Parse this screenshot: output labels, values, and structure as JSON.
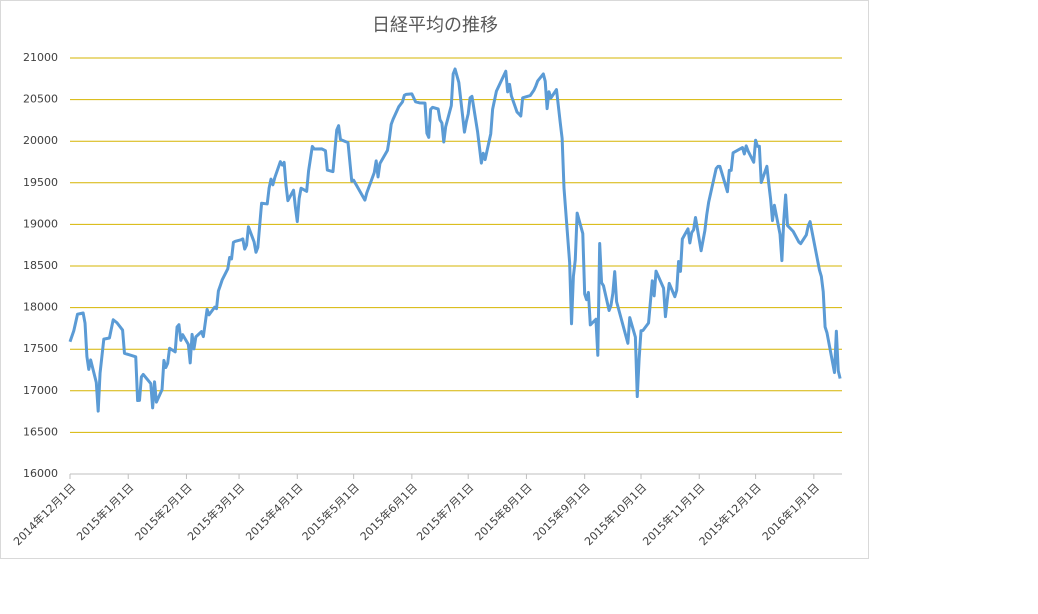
{
  "chart_data": {
    "type": "line",
    "title": "日経平均の推移",
    "x": [
      "2014-12-01",
      "2014-12-03",
      "2014-12-05",
      "2014-12-08",
      "2014-12-09",
      "2014-12-10",
      "2014-12-11",
      "2014-12-12",
      "2014-12-15",
      "2014-12-16",
      "2014-12-17",
      "2014-12-19",
      "2014-12-22",
      "2014-12-24",
      "2014-12-26",
      "2014-12-29",
      "2014-12-30",
      "2015-01-05",
      "2015-01-06",
      "2015-01-07",
      "2015-01-08",
      "2015-01-09",
      "2015-01-13",
      "2015-01-14",
      "2015-01-15",
      "2015-01-16",
      "2015-01-19",
      "2015-01-20",
      "2015-01-21",
      "2015-01-22",
      "2015-01-23",
      "2015-01-26",
      "2015-01-27",
      "2015-01-28",
      "2015-01-29",
      "2015-01-30",
      "2015-02-02",
      "2015-02-03",
      "2015-02-04",
      "2015-02-05",
      "2015-02-06",
      "2015-02-09",
      "2015-02-10",
      "2015-02-12",
      "2015-02-13",
      "2015-02-16",
      "2015-02-17",
      "2015-02-18",
      "2015-02-19",
      "2015-02-20",
      "2015-02-23",
      "2015-02-24",
      "2015-02-25",
      "2015-02-26",
      "2015-02-27",
      "2015-03-02",
      "2015-03-03",
      "2015-03-04",
      "2015-03-05",
      "2015-03-06",
      "2015-03-09",
      "2015-03-10",
      "2015-03-11",
      "2015-03-12",
      "2015-03-13",
      "2015-03-16",
      "2015-03-17",
      "2015-03-18",
      "2015-03-19",
      "2015-03-20",
      "2015-03-23",
      "2015-03-24",
      "2015-03-25",
      "2015-03-26",
      "2015-03-27",
      "2015-03-30",
      "2015-03-31",
      "2015-04-01",
      "2015-04-02",
      "2015-04-03",
      "2015-04-06",
      "2015-04-07",
      "2015-04-08",
      "2015-04-09",
      "2015-04-10",
      "2015-04-14",
      "2015-04-16",
      "2015-04-17",
      "2015-04-20",
      "2015-04-22",
      "2015-04-23",
      "2015-04-24",
      "2015-04-28",
      "2015-04-30",
      "2015-05-01",
      "2015-05-07",
      "2015-05-08",
      "2015-05-12",
      "2015-05-13",
      "2015-05-14",
      "2015-05-15",
      "2015-05-19",
      "2015-05-20",
      "2015-05-21",
      "2015-05-22",
      "2015-05-25",
      "2015-05-27",
      "2015-05-28",
      "2015-05-29",
      "2015-06-01",
      "2015-06-03",
      "2015-06-05",
      "2015-06-08",
      "2015-06-09",
      "2015-06-10",
      "2015-06-11",
      "2015-06-12",
      "2015-06-15",
      "2015-06-16",
      "2015-06-17",
      "2015-06-18",
      "2015-06-19",
      "2015-06-22",
      "2015-06-23",
      "2015-06-24",
      "2015-06-26",
      "2015-06-29",
      "2015-06-30",
      "2015-07-01",
      "2015-07-02",
      "2015-07-03",
      "2015-07-06",
      "2015-07-08",
      "2015-07-09",
      "2015-07-10",
      "2015-07-13",
      "2015-07-14",
      "2015-07-16",
      "2015-07-21",
      "2015-07-22",
      "2015-07-23",
      "2015-07-24",
      "2015-07-27",
      "2015-07-28",
      "2015-07-29",
      "2015-07-30",
      "2015-08-03",
      "2015-08-05",
      "2015-08-06",
      "2015-08-07",
      "2015-08-10",
      "2015-08-11",
      "2015-08-12",
      "2015-08-13",
      "2015-08-14",
      "2015-08-17",
      "2015-08-19",
      "2015-08-20",
      "2015-08-21",
      "2015-08-24",
      "2015-08-25",
      "2015-08-26",
      "2015-08-27",
      "2015-08-28",
      "2015-08-31",
      "2015-09-01",
      "2015-09-02",
      "2015-09-03",
      "2015-09-04",
      "2015-09-07",
      "2015-09-08",
      "2015-09-09",
      "2015-09-10",
      "2015-09-11",
      "2015-09-14",
      "2015-09-15",
      "2015-09-16",
      "2015-09-17",
      "2015-09-18",
      "2015-09-24",
      "2015-09-25",
      "2015-09-28",
      "2015-09-29",
      "2015-09-30",
      "2015-10-01",
      "2015-10-02",
      "2015-10-05",
      "2015-10-07",
      "2015-10-08",
      "2015-10-09",
      "2015-10-13",
      "2015-10-14",
      "2015-10-15",
      "2015-10-16",
      "2015-10-19",
      "2015-10-20",
      "2015-10-21",
      "2015-10-22",
      "2015-10-23",
      "2015-10-26",
      "2015-10-27",
      "2015-10-28",
      "2015-10-29",
      "2015-10-30",
      "2015-11-02",
      "2015-11-04",
      "2015-11-05",
      "2015-11-06",
      "2015-11-10",
      "2015-11-11",
      "2015-11-12",
      "2015-11-16",
      "2015-11-17",
      "2015-11-18",
      "2015-11-19",
      "2015-11-24",
      "2015-11-25",
      "2015-11-26",
      "2015-11-27",
      "2015-11-30",
      "2015-12-01",
      "2015-12-02",
      "2015-12-03",
      "2015-12-04",
      "2015-12-07",
      "2015-12-08",
      "2015-12-09",
      "2015-12-10",
      "2015-12-11",
      "2015-12-14",
      "2015-12-15",
      "2015-12-16",
      "2015-12-17",
      "2015-12-18",
      "2015-12-21",
      "2015-12-24",
      "2015-12-25",
      "2015-12-28",
      "2015-12-29",
      "2015-12-30",
      "2016-01-04",
      "2016-01-05",
      "2016-01-06",
      "2016-01-07",
      "2016-01-08",
      "2016-01-12",
      "2016-01-13",
      "2016-01-14",
      "2016-01-15"
    ],
    "series": [
      {
        "name": "日経平均",
        "color": "#5b9bd5",
        "values": [
          17590,
          17720,
          17920,
          17935,
          17813,
          17412,
          17257,
          17371,
          17100,
          16756,
          17211,
          17621,
          17635,
          17854,
          17818,
          17730,
          17451,
          17408,
          16883,
          16885,
          17167,
          17197,
          17087,
          16795,
          17108,
          16864,
          17014,
          17366,
          17280,
          17329,
          17511,
          17468,
          17768,
          17795,
          17606,
          17674,
          17558,
          17335,
          17678,
          17504,
          17648,
          17711,
          17652,
          17979,
          17913,
          18004,
          17987,
          18199,
          18264,
          18332,
          18466,
          18603,
          18585,
          18785,
          18797,
          18815,
          18826,
          18703,
          18751,
          18971,
          18790,
          18665,
          18723,
          18991,
          19254,
          19246,
          19437,
          19544,
          19476,
          19560,
          19754,
          19713,
          19746,
          19471,
          19285,
          19411,
          19206,
          19034,
          19312,
          19435,
          19397,
          19640,
          19789,
          19937,
          19907,
          19908,
          19885,
          19653,
          19634,
          20133,
          20187,
          20020,
          19983,
          19520,
          19531,
          19292,
          19379,
          19624,
          19764,
          19570,
          19732,
          19890,
          20026,
          20202,
          20264,
          20413,
          20473,
          20551,
          20563,
          20569,
          20473,
          20461,
          20457,
          20096,
          20046,
          20382,
          20407,
          20387,
          20257,
          20219,
          19990,
          20174,
          20428,
          20809,
          20868,
          20706,
          20109,
          20235,
          20329,
          20522,
          20539,
          20112,
          19737,
          19855,
          19779,
          20089,
          20385,
          20600,
          20841,
          20593,
          20683,
          20544,
          20350,
          20328,
          20303,
          20522,
          20548,
          20614,
          20664,
          20724,
          20808,
          20720,
          20392,
          20595,
          20519,
          20620,
          20222,
          20033,
          19436,
          18540,
          17806,
          18376,
          18574,
          19136,
          18890,
          18165,
          18095,
          18182,
          17792,
          17860,
          17427,
          18770,
          18299,
          18264,
          17965,
          18026,
          18171,
          18432,
          18070,
          17571,
          17880,
          17645,
          16931,
          17388,
          17722,
          17725,
          17815,
          18322,
          18141,
          18438,
          18234,
          17891,
          18097,
          18291,
          18131,
          18207,
          18554,
          18435,
          18825,
          18947,
          18777,
          18903,
          18935,
          19083,
          18683,
          18926,
          19117,
          19265,
          19671,
          19697,
          19697,
          19393,
          19649,
          19649,
          19860,
          19924,
          19847,
          19944,
          19883,
          19747,
          20012,
          19938,
          19939,
          19504,
          19698,
          19492,
          19301,
          19046,
          19230,
          18883,
          18565,
          19049,
          19353,
          18986,
          18916,
          18789,
          18769,
          18873,
          18982,
          19034,
          18451,
          18374,
          18191,
          17768,
          17698,
          17219,
          17716,
          17241,
          17147
        ]
      }
    ],
    "xlim": [
      "2014-12-01",
      "2016-01-16"
    ],
    "xticks": [
      {
        "value": "2014-12-01",
        "label": "2014年12月1日"
      },
      {
        "value": "2015-01-01",
        "label": "2015年1月1日"
      },
      {
        "value": "2015-02-01",
        "label": "2015年2月1日"
      },
      {
        "value": "2015-03-01",
        "label": "2015年3月1日"
      },
      {
        "value": "2015-04-01",
        "label": "2015年4月1日"
      },
      {
        "value": "2015-05-01",
        "label": "2015年5月1日"
      },
      {
        "value": "2015-06-01",
        "label": "2015年6月1日"
      },
      {
        "value": "2015-07-01",
        "label": "2015年7月1日"
      },
      {
        "value": "2015-08-01",
        "label": "2015年8月1日"
      },
      {
        "value": "2015-09-01",
        "label": "2015年9月1日"
      },
      {
        "value": "2015-10-01",
        "label": "2015年10月1日"
      },
      {
        "value": "2015-11-01",
        "label": "2015年11月1日"
      },
      {
        "value": "2015-12-01",
        "label": "2015年12月1日"
      },
      {
        "value": "2016-01-01",
        "label": "2016年1月1日"
      }
    ],
    "ylim": [
      16000,
      21000
    ],
    "yticks": [
      16000,
      16500,
      17000,
      17500,
      18000,
      18500,
      19000,
      19500,
      20000,
      20500,
      21000
    ],
    "grid": true,
    "grid_color": "#d6b400"
  }
}
